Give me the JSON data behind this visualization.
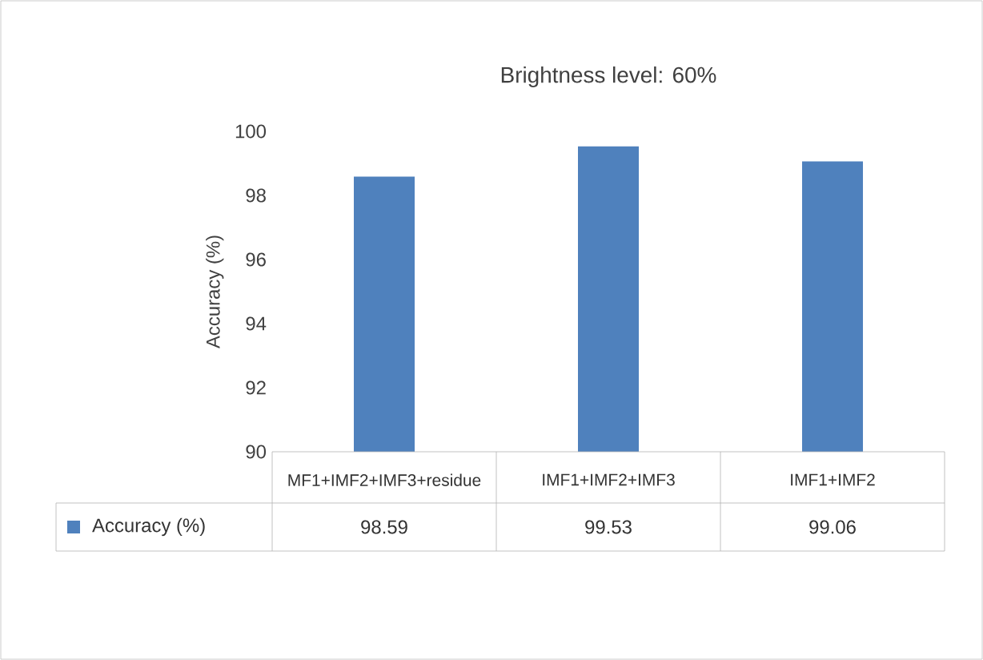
{
  "chart_data": {
    "type": "bar",
    "title": "Brightness level: 60%",
    "ylabel": "Accuracy (%)",
    "categories": [
      "MF1+IMF2+IMF3+residue",
      "IMF1+IMF2+IMF3",
      "IMF1+IMF2"
    ],
    "series": [
      {
        "name": "Accuracy (%)",
        "color": "#4f81bd",
        "values": [
          98.59,
          99.53,
          99.06
        ]
      }
    ],
    "ylim": [
      90,
      100
    ],
    "yticks": [
      90,
      92,
      94,
      96,
      98,
      100
    ],
    "data_labels": true,
    "legend": "bottom"
  }
}
